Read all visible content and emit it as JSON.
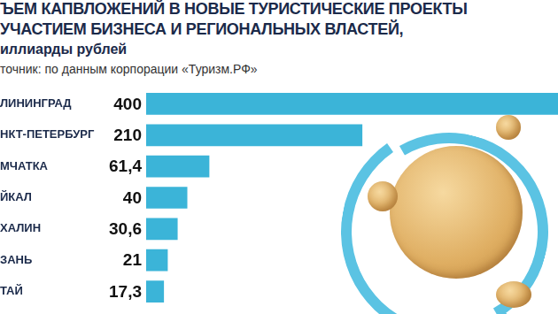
{
  "chart_data": {
    "type": "bar",
    "orientation": "horizontal",
    "title": [
      "ЪЕМ КАПВЛОЖЕНИЙ В НОВЫЕ ТУРИСТИЧЕСКИЕ ПРОЕКТЫ",
      "УЧАСТИЕМ БИЗНЕСА И РЕГИОНАЛЬНЫХ ВЛАСТЕЙ,"
    ],
    "subtitle": [
      "иллиарды рублей",
      "точник: по данным корпорации «Туризм.РФ»"
    ],
    "categories": [
      "ЛИНИНГРАД",
      "НКТ-ПЕТЕРБУРГ",
      "МЧАТКА",
      "ЙКАЛ",
      "ХАЛИН",
      "ЗАНЬ",
      "ТАЙ"
    ],
    "values": [
      400,
      210,
      61.4,
      40,
      30.6,
      21,
      17.3
    ],
    "value_labels": [
      "400",
      "210",
      "61,4",
      "40",
      "30,6",
      "21",
      "17,3"
    ],
    "data_labels": true,
    "color": "#3bb4d8",
    "xlim": [
      0,
      400
    ],
    "grid": false,
    "tick_labels": "y"
  }
}
